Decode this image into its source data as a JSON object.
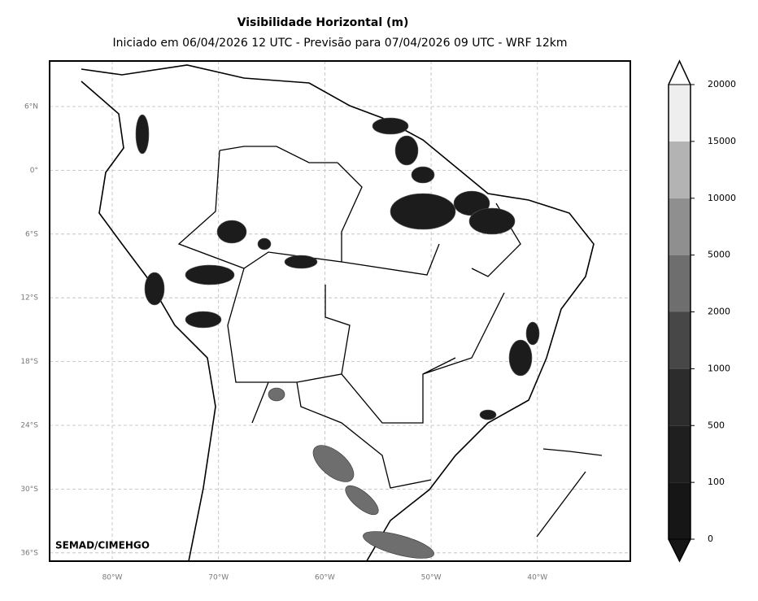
{
  "title": "Visibilidade Horizontal (m)",
  "subtitle": "Iniciado em 06/04/2026 12 UTC - Previsão para 07/04/2026 09 UTC - WRF 12km",
  "credit": "SEMAD/CIMEHGO",
  "lon_labels": [
    "80°W",
    "70°W",
    "60°W",
    "50°W",
    "40°W"
  ],
  "lat_labels": [
    "6°N",
    "0°",
    "6°S",
    "12°S",
    "18°S",
    "24°S",
    "30°S",
    "36°S"
  ],
  "colorbar": {
    "ticks": [
      0,
      100,
      500,
      1000,
      2000,
      5000,
      10000,
      15000,
      20000
    ],
    "colors": [
      "#161616",
      "#1f1f1f",
      "#2c2c2c",
      "#474747",
      "#6e6e6e",
      "#8f8f8f",
      "#b3b3b3",
      "#eeeeee"
    ],
    "extend_low_color": "#161616",
    "extend_high_color": "#ffffff"
  }
}
